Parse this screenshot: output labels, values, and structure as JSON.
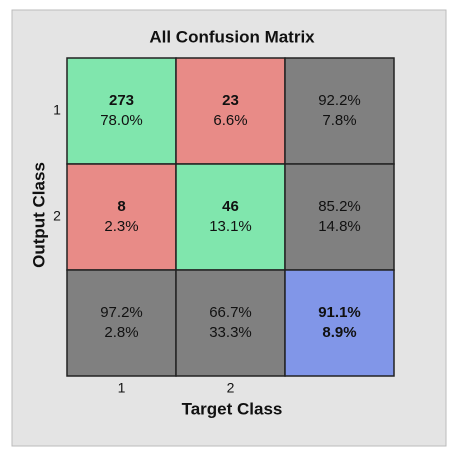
{
  "chart_data": {
    "type": "confusion_matrix",
    "title": "All Confusion Matrix",
    "xlabel": "Target Class",
    "ylabel": "Output Class",
    "x_categories": [
      "1",
      "2"
    ],
    "y_categories": [
      "1",
      "2"
    ],
    "counts": [
      [
        273,
        23
      ],
      [
        8,
        46
      ]
    ],
    "count_percents": {
      "values": [
        [
          78.0,
          6.6
        ],
        [
          2.3,
          13.1
        ]
      ],
      "value_labels": [
        [
          "78.0%",
          "6.6%"
        ],
        [
          "2.3%",
          "13.1%"
        ]
      ]
    },
    "row_summary": {
      "values": [
        [
          92.2,
          7.8
        ],
        [
          85.2,
          14.8
        ]
      ],
      "value_labels": [
        [
          "92.2%",
          "7.8%"
        ],
        [
          "85.2%",
          "14.8%"
        ]
      ]
    },
    "col_summary": {
      "values": [
        [
          97.2,
          2.8
        ],
        [
          66.7,
          33.3
        ]
      ],
      "value_labels": [
        [
          "97.2%",
          "2.8%"
        ],
        [
          "66.7%",
          "33.3%"
        ]
      ]
    },
    "overall": {
      "values": [
        91.1,
        8.9
      ],
      "value_labels": [
        "91.1%",
        "8.9%"
      ]
    },
    "colors": {
      "correct": "#80e6ad",
      "wrong": "#e88b87",
      "summary": "#808080",
      "overall": "#8196e8",
      "good_text": "#1f6b1f",
      "bad_text": "#7a1c1c"
    }
  }
}
